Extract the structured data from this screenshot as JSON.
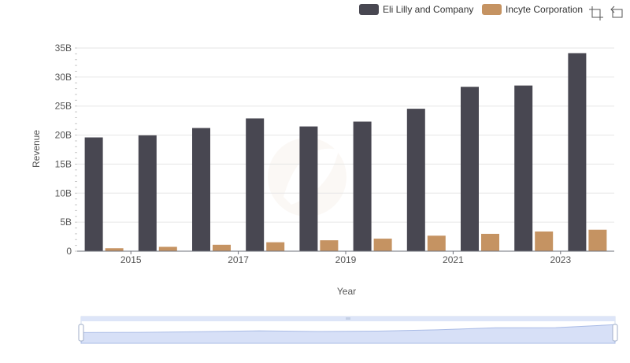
{
  "chart_data": {
    "type": "bar",
    "categories": [
      "2014",
      "2015",
      "2016",
      "2017",
      "2018",
      "2019",
      "2020",
      "2021",
      "2022",
      "2023"
    ],
    "series": [
      {
        "name": "Eli Lilly and Company",
        "color": "#484751",
        "values": [
          19.6,
          19.96,
          21.22,
          22.87,
          21.49,
          22.32,
          24.54,
          28.32,
          28.54,
          34.12
        ]
      },
      {
        "name": "Incyte Corporation",
        "color": "#c59362",
        "values": [
          0.51,
          0.75,
          1.11,
          1.54,
          1.88,
          2.16,
          2.67,
          2.99,
          3.39,
          3.7
        ]
      }
    ],
    "x_tick_labels": [
      "2015",
      "2017",
      "2019",
      "2021",
      "2023"
    ],
    "y_ticks": [
      0,
      5,
      10,
      15,
      20,
      25,
      30,
      35
    ],
    "y_tick_labels": [
      "0",
      "5B",
      "10B",
      "15B",
      "20B",
      "25B",
      "30B",
      "35B"
    ],
    "ylim": [
      0,
      35
    ],
    "ylabel": "Revenue",
    "xlabel": "Year",
    "grid": "horizontal",
    "legend_position": "top-right"
  },
  "toolbar": {
    "zoom_icon": "zoom-icon",
    "reset_icon": "reset-zoom-icon"
  },
  "data_zoom": {
    "start_percent": 0,
    "end_percent": 100,
    "handle_icon": "grip-icon"
  }
}
